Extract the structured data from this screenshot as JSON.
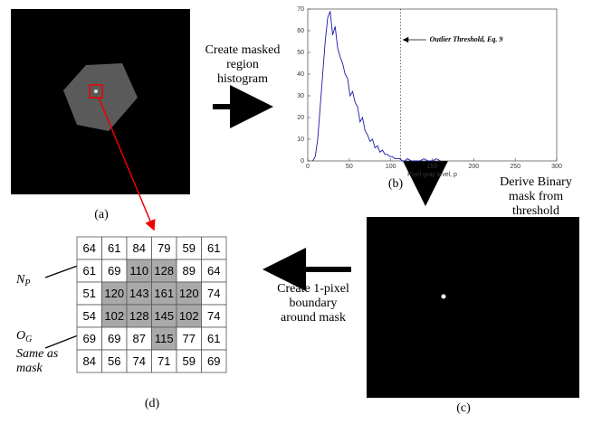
{
  "chart_data": {
    "type": "line",
    "xlabel": "Pixel gray level, p",
    "x": [
      6,
      9,
      12,
      15,
      18,
      21,
      24,
      27,
      30,
      33,
      36,
      39,
      42,
      45,
      48,
      51,
      54,
      57,
      60,
      63,
      66,
      69,
      72,
      75,
      78,
      81,
      84,
      87,
      90,
      93,
      96,
      99,
      102,
      105,
      108,
      111,
      114,
      117,
      120,
      125,
      130,
      135,
      140,
      145,
      150,
      155,
      160
    ],
    "values": [
      0,
      2,
      10,
      25,
      40,
      55,
      66,
      69,
      58,
      62,
      52,
      48,
      45,
      40,
      38,
      30,
      32,
      27,
      25,
      18,
      20,
      14,
      12,
      9,
      10,
      6,
      7,
      4,
      5,
      3,
      3,
      2,
      2,
      1,
      1,
      1,
      0,
      0,
      1,
      0,
      0,
      0,
      1,
      0,
      0,
      1,
      0
    ],
    "color": "#1a1aa8",
    "xlim": [
      0,
      300
    ],
    "xticks": [
      0,
      50,
      100,
      150,
      200,
      250,
      300
    ],
    "ylim": [
      0,
      70
    ],
    "yticks": [
      0,
      10,
      20,
      30,
      40,
      50,
      60,
      70
    ],
    "annotation": {
      "text": "Outlier Threshold, Eq. 9",
      "x": 112
    }
  },
  "panel_labels": {
    "a": "(a)",
    "b": "(b)",
    "c": "(c)",
    "d": "(d)"
  },
  "steps": {
    "histogram": [
      "Create masked",
      "region",
      "histogram"
    ],
    "threshold": [
      "Derive Binary",
      "mask from",
      "threshold"
    ],
    "boundary": [
      "Create 1-pixel",
      "boundary",
      "around mask"
    ]
  },
  "labels": {
    "np": {
      "main": "N",
      "sub": "P"
    },
    "og": {
      "main": "O",
      "sub": "G",
      "lines": [
        "Same as",
        "mask"
      ]
    }
  },
  "table": {
    "rows": [
      [
        64,
        61,
        84,
        79,
        59,
        61
      ],
      [
        61,
        69,
        110,
        128,
        89,
        64
      ],
      [
        51,
        120,
        143,
        161,
        120,
        74
      ],
      [
        54,
        102,
        128,
        145,
        102,
        74
      ],
      [
        69,
        69,
        87,
        115,
        77,
        61
      ],
      [
        84,
        56,
        74,
        71,
        59,
        69
      ]
    ]
  }
}
